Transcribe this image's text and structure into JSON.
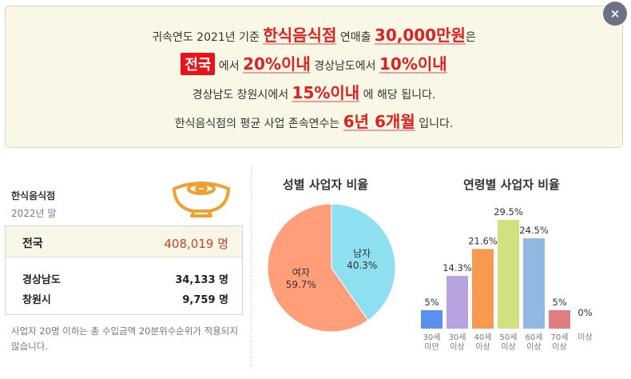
{
  "banner": {
    "line1": {
      "pre": "귀속연도 2021년 기준",
      "hl1": "한식음식점",
      "mid": "연매출",
      "hl2": "30,000만원",
      "post": "은"
    },
    "line2": {
      "badge": "전국",
      "mid1": "에서",
      "hl1": "20%이내",
      "mid2": "경상남도에서",
      "hl2": "10%이내"
    },
    "line3": {
      "pre": "경상남도 창원시에서",
      "hl": "15%이내",
      "post": "에 해당 됩니다."
    },
    "line4": {
      "pre": "한식음식점의 평균 사업 존속연수는",
      "hl": "6년 6개월",
      "post": "입니다."
    },
    "close_symbol": "×"
  },
  "left": {
    "category": "한식음식점",
    "year": "2022년 말",
    "icon": "food-bowl-icon",
    "stats": [
      {
        "region": "전국",
        "value": "408,019 명"
      },
      {
        "region": "경상남도",
        "value": "34,133 명"
      },
      {
        "region": "창원시",
        "value": "9,759 명"
      }
    ],
    "note": "사업자 20명 이하는 총 수입금액 20분위수순위가 적용되지 않습니다."
  },
  "colors": {
    "highlight": "#e02020",
    "national_value": "#c0462a",
    "bowl": "#f0a030",
    "pie_male": "#8ee0f0",
    "pie_female": "#ff9e78"
  },
  "chart_data": [
    {
      "type": "pie",
      "title": "성별 사업자 비율",
      "slices": [
        {
          "name": "남자",
          "value": 40.3,
          "label": "40.3%",
          "color": "#8ee0f0"
        },
        {
          "name": "여자",
          "value": 59.7,
          "label": "59.7%",
          "color": "#ff9e78"
        }
      ]
    },
    {
      "type": "bar",
      "title": "연령별 사업자 비율",
      "categories": [
        [
          "30세",
          "미만"
        ],
        [
          "30세",
          "이상"
        ],
        [
          "40세",
          "이상"
        ],
        [
          "50세",
          "이상"
        ],
        [
          "60세",
          "이상"
        ],
        [
          "70세",
          "이상"
        ],
        [
          "미상"
        ]
      ],
      "values": [
        5,
        14.3,
        21.6,
        29.5,
        24.5,
        5,
        0
      ],
      "value_labels": [
        "5%",
        "14.3%",
        "21.6%",
        "29.5%",
        "24.5%",
        "5%",
        "0%"
      ],
      "colors": [
        "#5b8ff0",
        "#b9a2e0",
        "#f59a4e",
        "#cfe27e",
        "#8fb9e0",
        "#e07d80",
        "#cccccc"
      ],
      "ylim": [
        0,
        29.5
      ]
    }
  ]
}
